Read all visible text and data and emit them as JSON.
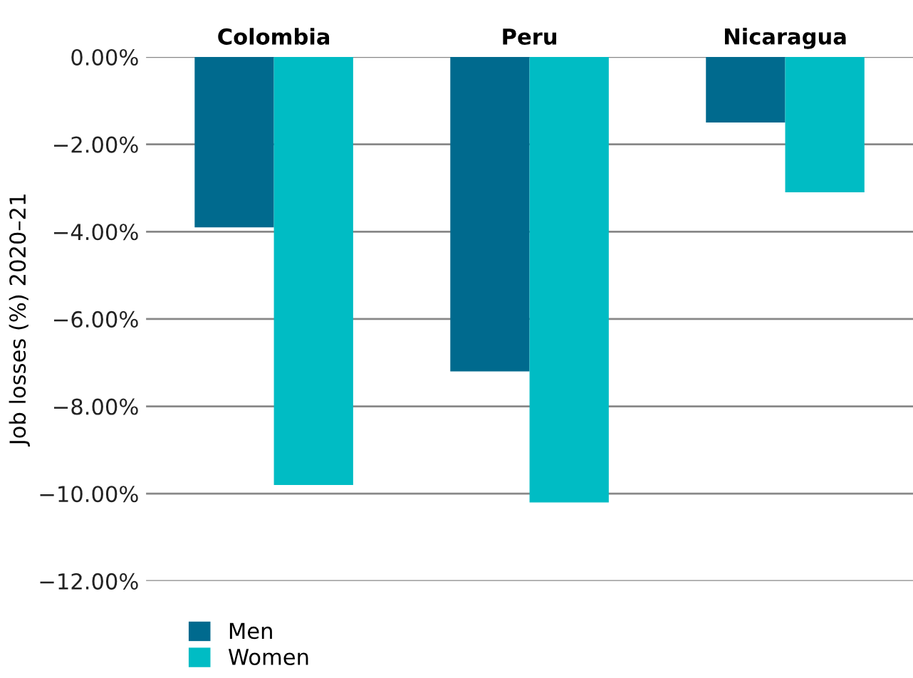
{
  "chart_data": {
    "type": "bar",
    "ylabel": "Job losses (%) 2020–21",
    "categories": [
      "Colombia",
      "Peru",
      "Nicaragua"
    ],
    "series": [
      {
        "name": "Men",
        "color": "#006a8e",
        "values": [
          -3.9,
          -7.2,
          -1.5
        ]
      },
      {
        "name": "Women",
        "color": "#00bcc4",
        "values": [
          -9.8,
          -10.2,
          -3.1
        ]
      }
    ],
    "ylim": [
      -12,
      0
    ],
    "yticks": [
      {
        "value": 0,
        "label": "0.00%"
      },
      {
        "value": -2,
        "label": "−2.00%"
      },
      {
        "value": -4,
        "label": "−4.00%"
      },
      {
        "value": -6,
        "label": "−6.00%"
      },
      {
        "value": -8,
        "label": "−8.00%"
      },
      {
        "value": -10,
        "label": "−10.00%"
      },
      {
        "value": -12,
        "label": "−12.00%"
      }
    ],
    "grid": "y",
    "legend": "bottom left"
  }
}
